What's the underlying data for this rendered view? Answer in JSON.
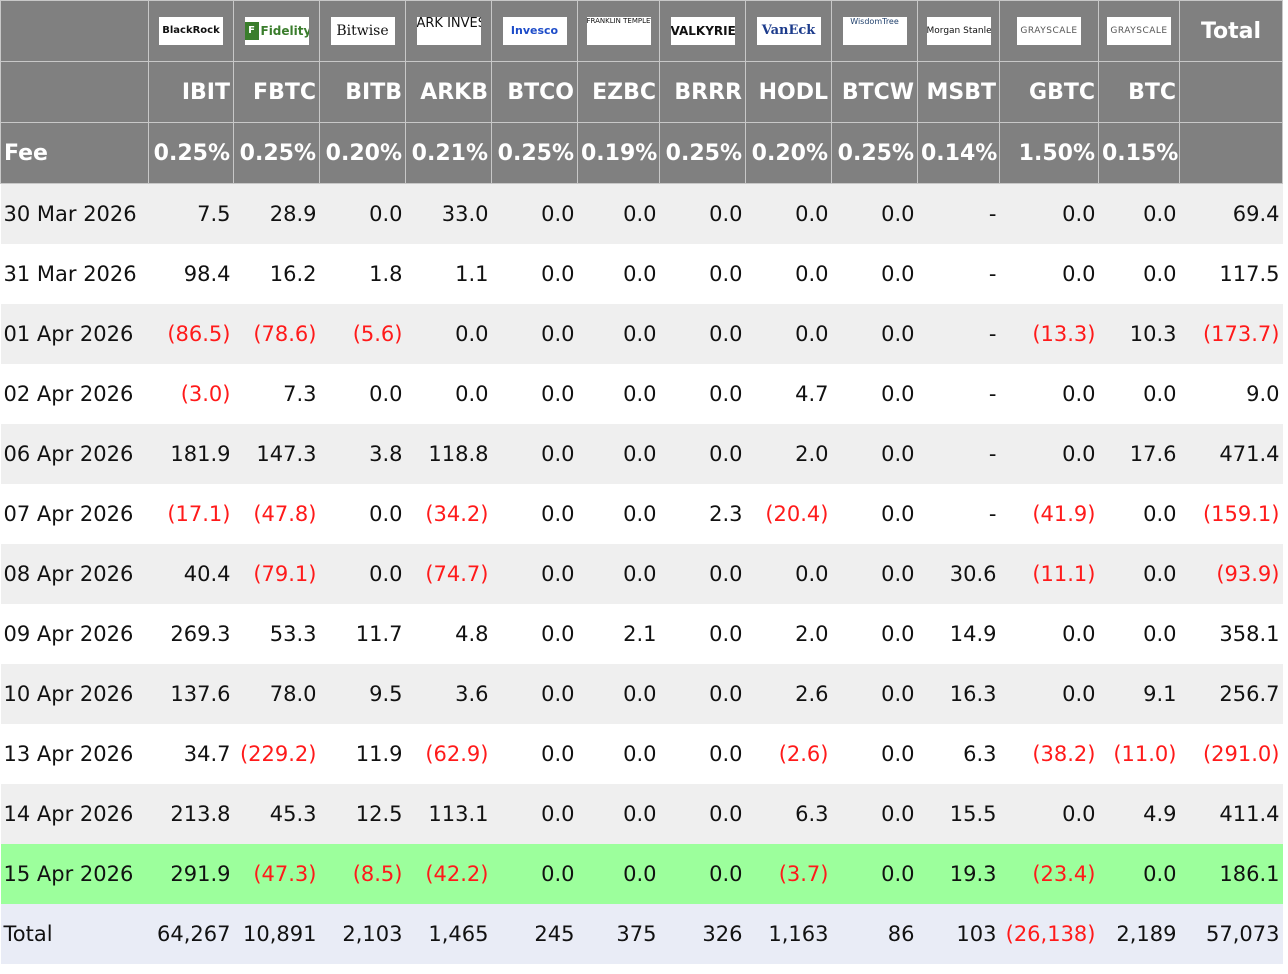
{
  "header": {
    "total_label": "Total",
    "fee_label": "Fee",
    "funds": [
      {
        "logo": "BlackRock",
        "ticker": "IBIT",
        "fee": "0.25%"
      },
      {
        "logo": "Fidelity",
        "ticker": "FBTC",
        "fee": "0.25%"
      },
      {
        "logo": "Bitwise",
        "ticker": "BITB",
        "fee": "0.20%"
      },
      {
        "logo": "ARK INVEST",
        "ticker": "ARKB",
        "fee": "0.21%"
      },
      {
        "logo": "Invesco",
        "ticker": "BTCO",
        "fee": "0.25%"
      },
      {
        "logo": "FRANKLIN TEMPLETON",
        "ticker": "EZBC",
        "fee": "0.19%"
      },
      {
        "logo": "VALKYRIE",
        "ticker": "BRRR",
        "fee": "0.25%"
      },
      {
        "logo": "VanEck",
        "ticker": "HODL",
        "fee": "0.20%"
      },
      {
        "logo": "WisdomTree",
        "ticker": "BTCW",
        "fee": "0.25%"
      },
      {
        "logo": "Morgan Stanley",
        "ticker": "MSBT",
        "fee": "0.14%"
      },
      {
        "logo": "GRAYSCALE",
        "ticker": "GBTC",
        "fee": "1.50%"
      },
      {
        "logo": "GRAYSCALE",
        "ticker": "BTC",
        "fee": "0.15%"
      }
    ]
  },
  "rows": [
    {
      "date": "30 Mar 2026",
      "values": [
        "7.5",
        "28.9",
        "0.0",
        "33.0",
        "0.0",
        "0.0",
        "0.0",
        "0.0",
        "0.0",
        "-",
        "0.0",
        "0.0"
      ],
      "total": "69.4"
    },
    {
      "date": "31 Mar 2026",
      "values": [
        "98.4",
        "16.2",
        "1.8",
        "1.1",
        "0.0",
        "0.0",
        "0.0",
        "0.0",
        "0.0",
        "-",
        "0.0",
        "0.0"
      ],
      "total": "117.5"
    },
    {
      "date": "01 Apr 2026",
      "values": [
        "(86.5)",
        "(78.6)",
        "(5.6)",
        "0.0",
        "0.0",
        "0.0",
        "0.0",
        "0.0",
        "0.0",
        "-",
        "(13.3)",
        "10.3"
      ],
      "total": "(173.7)"
    },
    {
      "date": "02 Apr 2026",
      "values": [
        "(3.0)",
        "7.3",
        "0.0",
        "0.0",
        "0.0",
        "0.0",
        "0.0",
        "4.7",
        "0.0",
        "-",
        "0.0",
        "0.0"
      ],
      "total": "9.0"
    },
    {
      "date": "06 Apr 2026",
      "values": [
        "181.9",
        "147.3",
        "3.8",
        "118.8",
        "0.0",
        "0.0",
        "0.0",
        "2.0",
        "0.0",
        "-",
        "0.0",
        "17.6"
      ],
      "total": "471.4"
    },
    {
      "date": "07 Apr 2026",
      "values": [
        "(17.1)",
        "(47.8)",
        "0.0",
        "(34.2)",
        "0.0",
        "0.0",
        "2.3",
        "(20.4)",
        "0.0",
        "-",
        "(41.9)",
        "0.0"
      ],
      "total": "(159.1)"
    },
    {
      "date": "08 Apr 2026",
      "values": [
        "40.4",
        "(79.1)",
        "0.0",
        "(74.7)",
        "0.0",
        "0.0",
        "0.0",
        "0.0",
        "0.0",
        "30.6",
        "(11.1)",
        "0.0"
      ],
      "total": "(93.9)"
    },
    {
      "date": "09 Apr 2026",
      "values": [
        "269.3",
        "53.3",
        "11.7",
        "4.8",
        "0.0",
        "2.1",
        "0.0",
        "2.0",
        "0.0",
        "14.9",
        "0.0",
        "0.0"
      ],
      "total": "358.1"
    },
    {
      "date": "10 Apr 2026",
      "values": [
        "137.6",
        "78.0",
        "9.5",
        "3.6",
        "0.0",
        "0.0",
        "0.0",
        "2.6",
        "0.0",
        "16.3",
        "0.0",
        "9.1"
      ],
      "total": "256.7"
    },
    {
      "date": "13 Apr 2026",
      "values": [
        "34.7",
        "(229.2)",
        "11.9",
        "(62.9)",
        "0.0",
        "0.0",
        "0.0",
        "(2.6)",
        "0.0",
        "6.3",
        "(38.2)",
        "(11.0)"
      ],
      "total": "(291.0)"
    },
    {
      "date": "14 Apr 2026",
      "values": [
        "213.8",
        "45.3",
        "12.5",
        "113.1",
        "0.0",
        "0.0",
        "0.0",
        "6.3",
        "0.0",
        "15.5",
        "0.0",
        "4.9"
      ],
      "total": "411.4"
    },
    {
      "date": "15 Apr 2026",
      "values": [
        "291.9",
        "(47.3)",
        "(8.5)",
        "(42.2)",
        "0.0",
        "0.0",
        "0.0",
        "(3.7)",
        "0.0",
        "19.3",
        "(23.4)",
        "0.0"
      ],
      "total": "186.1",
      "highlight": true
    }
  ],
  "totals": {
    "label": "Total",
    "values": [
      "64,267",
      "10,891",
      "2,103",
      "1,465",
      "245",
      "375",
      "326",
      "1,163",
      "86",
      "103",
      "(26,138)",
      "2,189"
    ],
    "total": "57,073"
  },
  "colors": {
    "header_bg": "#808080",
    "negative": "#ff1a1a",
    "highlight_row": "#9cff9c",
    "totals_row": "#e9ecf6",
    "alt_row": "#efefef"
  }
}
